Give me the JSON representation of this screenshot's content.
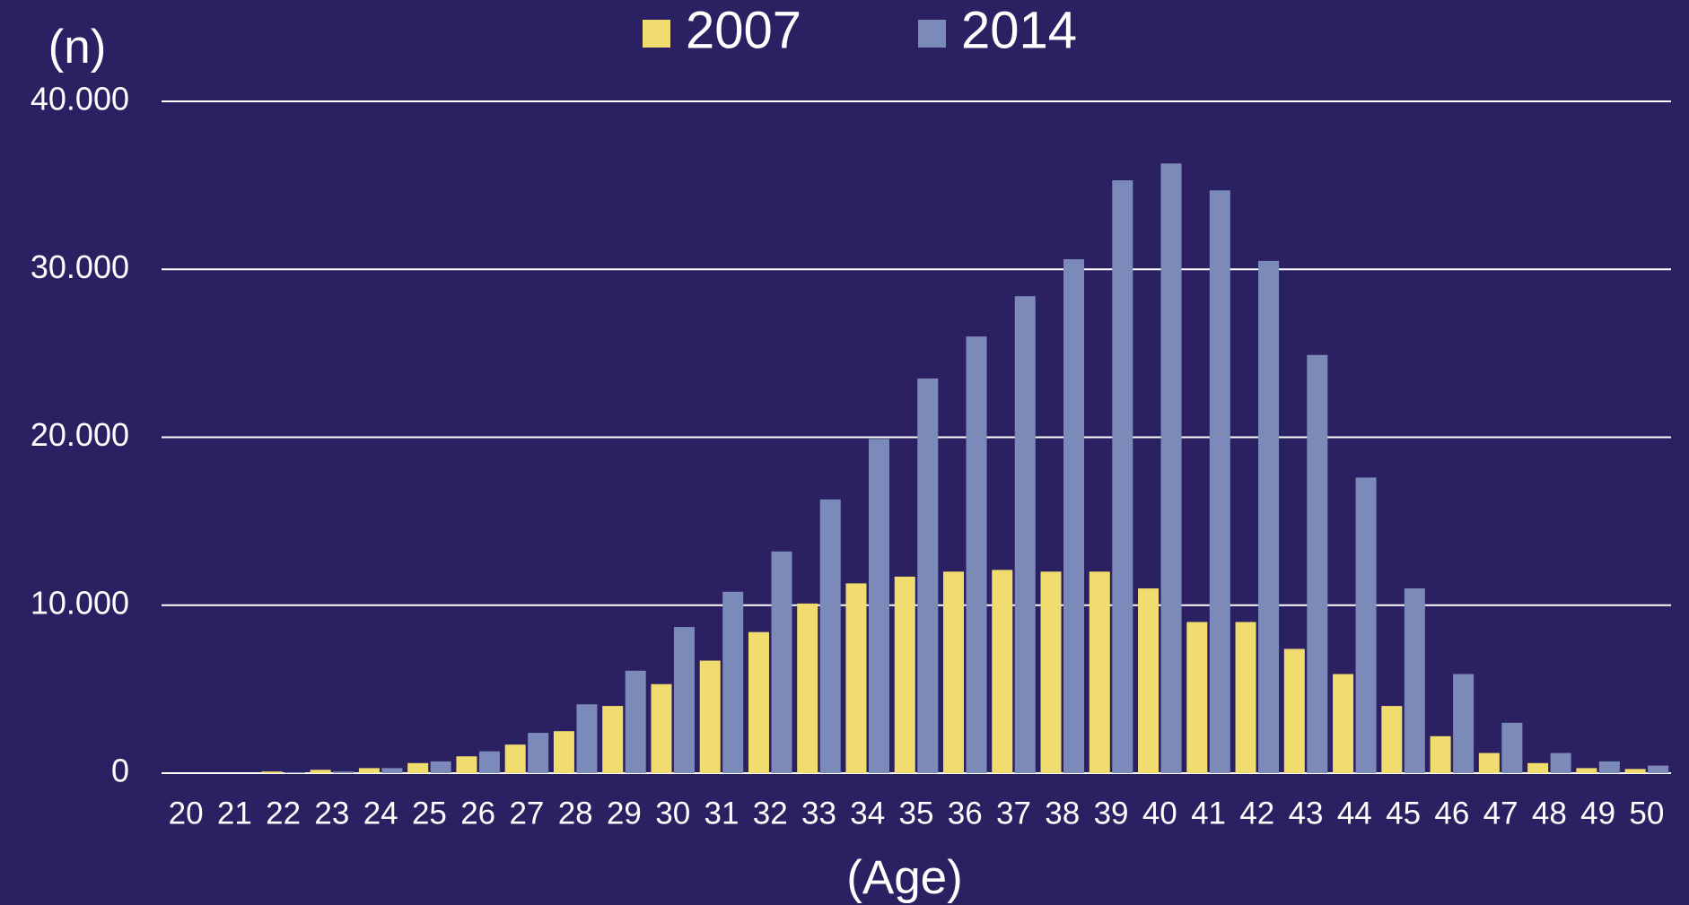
{
  "chart_data": {
    "type": "bar",
    "y_label": "(n)",
    "x_label": "(Age)",
    "categories": [
      "20",
      "21",
      "22",
      "23",
      "24",
      "25",
      "26",
      "27",
      "28",
      "29",
      "30",
      "31",
      "32",
      "33",
      "34",
      "35",
      "36",
      "37",
      "38",
      "39",
      "40",
      "41",
      "42",
      "43",
      "44",
      "45",
      "46",
      "47",
      "48",
      "49",
      "50"
    ],
    "series": [
      {
        "name": "2007",
        "color": "#f1dc6f",
        "values": [
          0,
          0,
          100,
          200,
          300,
          600,
          1000,
          1700,
          2500,
          4000,
          5300,
          6700,
          8400,
          10100,
          11300,
          11700,
          12000,
          12100,
          12000,
          12000,
          11000,
          9000,
          9000,
          7400,
          5900,
          4000,
          2200,
          1200,
          600,
          300,
          250
        ]
      },
      {
        "name": "2014",
        "color": "#7b8ab9",
        "values": [
          0,
          0,
          50,
          100,
          300,
          700,
          1300,
          2400,
          4100,
          6100,
          8700,
          10800,
          13200,
          16300,
          19900,
          23500,
          26000,
          28400,
          30600,
          35300,
          36300,
          34700,
          30500,
          24900,
          17600,
          11000,
          5900,
          3000,
          1200,
          700,
          450
        ]
      }
    ],
    "ylim": [
      0,
      40000
    ],
    "yticks": [
      0,
      {
        "value": 10000,
        "label": "10.000"
      },
      {
        "value": 20000,
        "label": "20.000"
      },
      {
        "value": 30000,
        "label": "30.000"
      },
      {
        "value": 40000,
        "label": "40.000"
      }
    ],
    "grid": true,
    "legend": "top"
  }
}
